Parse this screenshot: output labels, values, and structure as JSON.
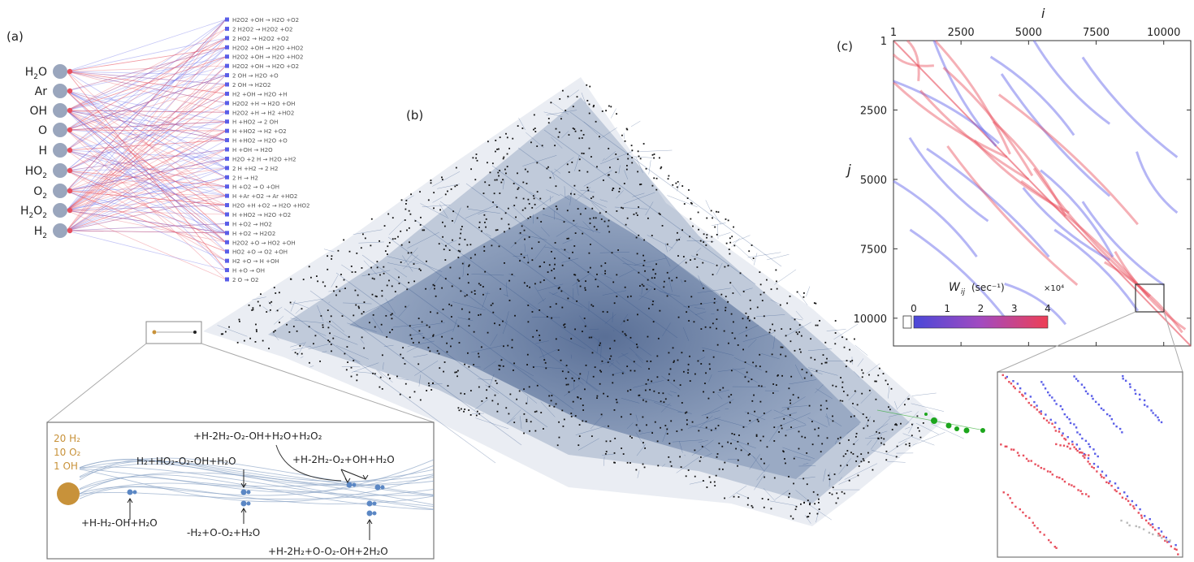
{
  "panel_labels": {
    "a": "(a)",
    "b": "(b)",
    "c": "(c)"
  },
  "species": [
    {
      "label": "H",
      "sub": "2",
      "rest": "O"
    },
    {
      "label": "Ar",
      "sub": "",
      "rest": ""
    },
    {
      "label": "OH",
      "sub": "",
      "rest": ""
    },
    {
      "label": "O",
      "sub": "",
      "rest": ""
    },
    {
      "label": "H",
      "sub": "",
      "rest": ""
    },
    {
      "label": "HO",
      "sub": "2",
      "rest": ""
    },
    {
      "label": "O",
      "sub": "2",
      "rest": ""
    },
    {
      "label": "H",
      "sub": "2",
      "rest": "O2"
    },
    {
      "label": "H",
      "sub": "2",
      "rest": ""
    }
  ],
  "reactions": [
    "H2O2 +OH → H2O +O2",
    "2 H2O2 → H2O2 +O2",
    "2 HO2 → H2O2 +O2",
    "H2O2 +OH → H2O +HO2",
    "H2O2 +OH → H2O +HO2",
    "H2O2 +OH → H2O +O2",
    "2 OH → H2O +O",
    "2 OH → H2O2",
    "H2 +OH → H2O +H",
    "H2O2 +H → H2O +OH",
    "H2O2 +H → H2 +HO2",
    "H +HO2 → 2 OH",
    "H +HO2 → H2 +O2",
    "H +HO2 → H2O +O",
    "H +OH → H2O",
    "H2O +2 H → H2O +H2",
    "2 H +H2 → 2 H2",
    "2 H → H2",
    "H +O2 → O +OH",
    "H +Ar +O2 → Ar +HO2",
    "H2O +H +O2 → H2O +HO2",
    "H +HO2 → H2O +O2",
    "H +O2 → HO2",
    "H +O2 → H2O2",
    "H2O2 +O → HO2 +OH",
    "HO2 +O → O2 +OH",
    "H2 +O → H +OH",
    "H +O → OH",
    "2 O → O2"
  ],
  "network_box": {
    "initial_state": [
      "20 H₂",
      "10 O₂",
      "1 OH"
    ],
    "transitions": [
      "+H-2H₂-O₂-OH+H₂O+H₂O₂",
      "H₂+HO₂-O₂-OH+H₂O",
      "+H-2H₂-O₂+OH+H₂O",
      "+H-H₂-OH+H₂O",
      "-H₂+O-O₂+H₂O",
      "+H-2H₂+O-O₂-OH+2H₂O"
    ]
  },
  "matrix": {
    "x_axis_label": "i",
    "y_axis_label": "j",
    "x_ticks": [
      "1",
      "2500",
      "5000",
      "7500",
      "10000"
    ],
    "y_ticks": [
      "1",
      "2500",
      "5000",
      "7500",
      "10000"
    ],
    "colorbar": {
      "label": "W",
      "label_sub": "ij",
      "label_unit": "(sec⁻¹)",
      "multiplier": "×10⁴",
      "ticks": [
        "0",
        "1",
        "2",
        "3",
        "4"
      ]
    }
  },
  "colors": {
    "red": "#e8505e",
    "blue": "#5a5ee8",
    "network": "#2e4f86",
    "node_gray": "#9aa6bd",
    "start_node": "#c8923a",
    "end_node": "#1ca61c"
  }
}
